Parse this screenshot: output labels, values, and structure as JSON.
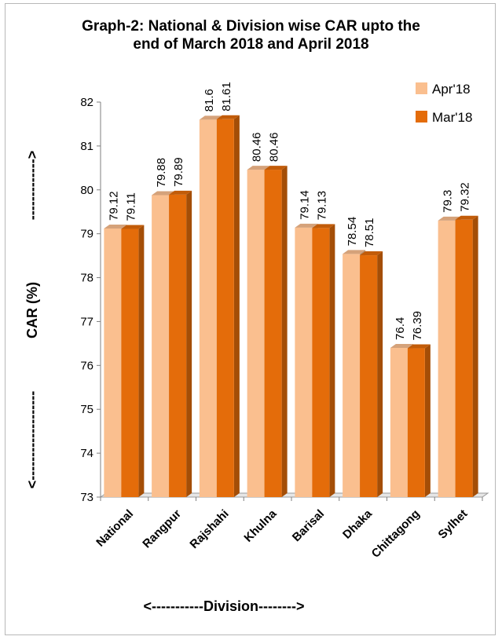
{
  "chart_data": {
    "type": "bar",
    "title_line1": "Graph-2: National & Division wise CAR upto the",
    "title_line2": "end of  March 2018  and  April 2018",
    "xlabel": "<-----------Division-------->",
    "ylabel": "<-------------- CAR (%) ------------------>",
    "ylabel_text": "CAR (%)",
    "ylim": [
      73,
      82
    ],
    "yticks": [
      73,
      74,
      75,
      76,
      77,
      78,
      79,
      80,
      81,
      82
    ],
    "categories": [
      "National",
      "Rangpur",
      "Rajshahi",
      "Khulna",
      "Barisal",
      "Dhaka",
      "Chittagong",
      "Sylhet"
    ],
    "series": [
      {
        "name": "Apr'18",
        "color": "#fabf8f",
        "values": [
          79.12,
          79.88,
          81.6,
          80.46,
          79.14,
          78.54,
          76.4,
          79.3
        ],
        "labels": [
          "79.12",
          "79.88",
          "81.6",
          "80.46",
          "79.14",
          "78.54",
          "76.4",
          "79.3"
        ]
      },
      {
        "name": "Mar'18",
        "color": "#e46c0a",
        "values": [
          79.11,
          79.89,
          81.61,
          80.46,
          79.13,
          78.51,
          76.39,
          79.32
        ],
        "labels": [
          "79.11",
          "79.89",
          "81.61",
          "80.46",
          "79.13",
          "78.51",
          "76.39",
          "79.32"
        ]
      }
    ],
    "legend_position": "top-right",
    "grid": false
  }
}
